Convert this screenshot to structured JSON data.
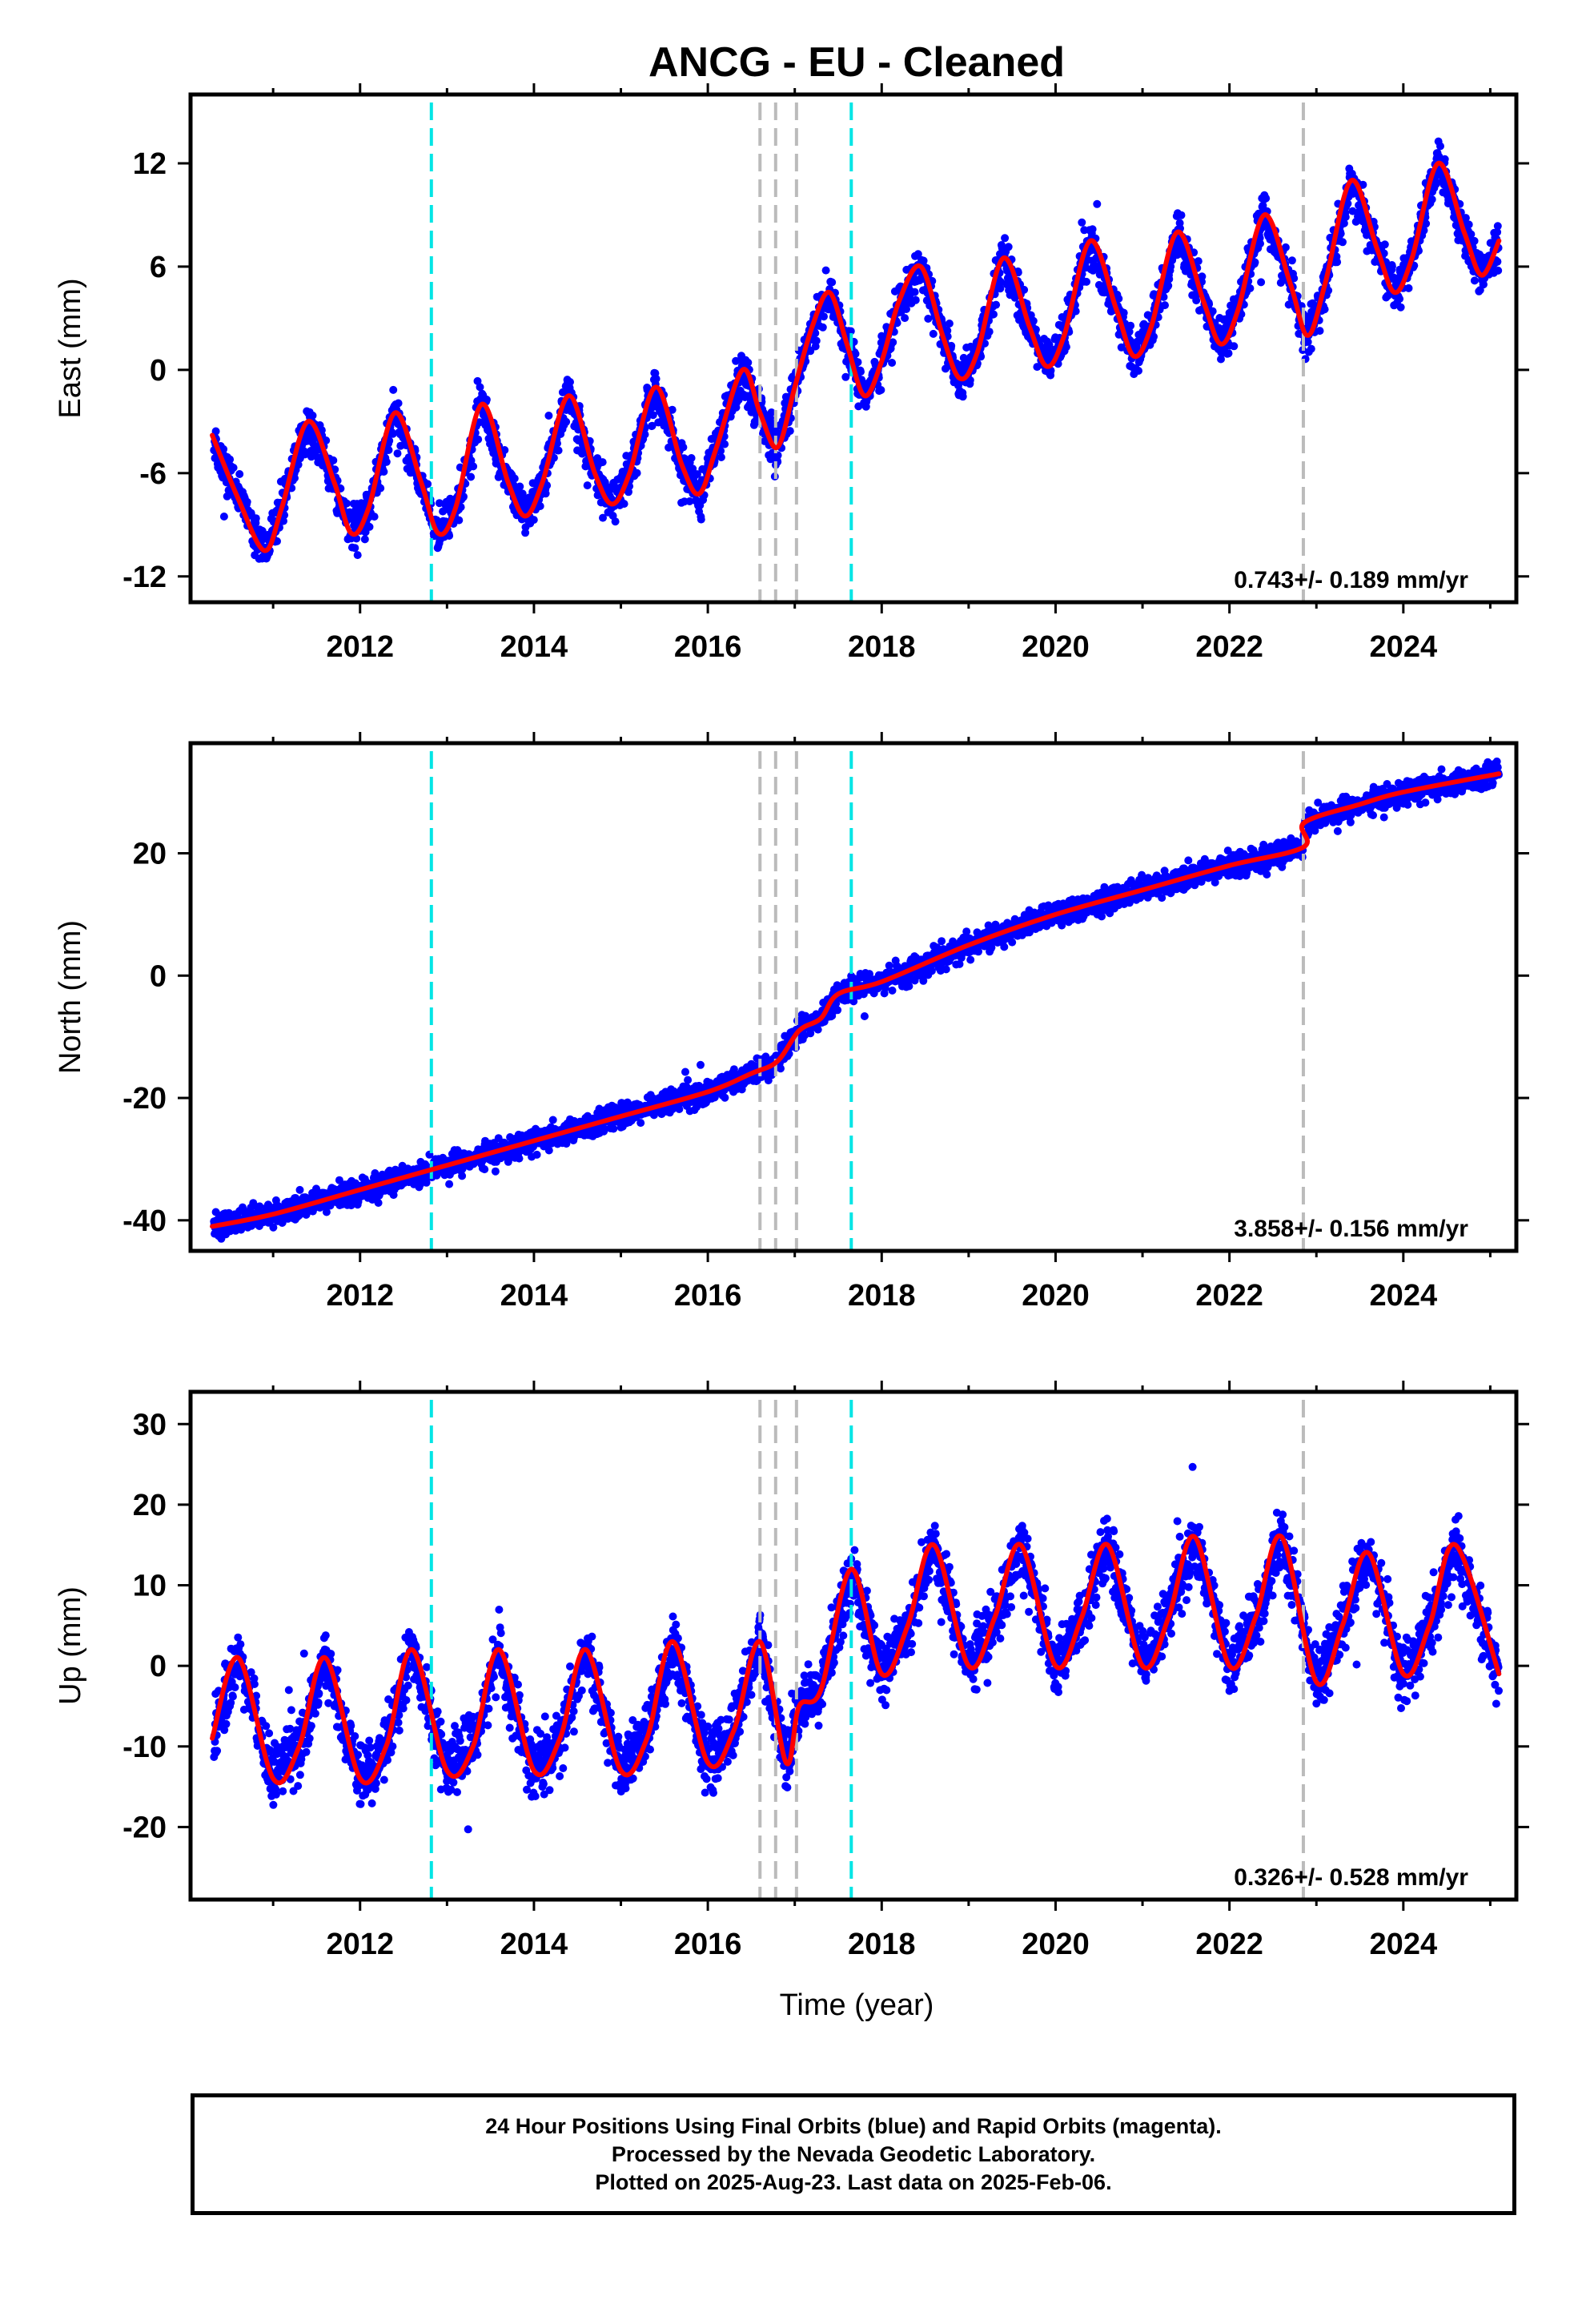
{
  "figure": {
    "title": "ANCG  - EU - Cleaned",
    "xlabel": "Time (year)",
    "footer": [
      "24 Hour Positions Using Final Orbits (blue) and Rapid Orbits (magenta).",
      "Processed by the Nevada Geodetic Laboratory.",
      "Plotted on 2025-Aug-23. Last data on 2025-Feb-06."
    ]
  },
  "colors": {
    "points": "#0000ff",
    "model": "#ff0000",
    "break_cyan": "#00e5e5",
    "break_gray": "#bbbbbb",
    "axis": "#000000"
  },
  "chart_data": [
    {
      "type": "scatter",
      "component": "east",
      "ylabel": "East (mm)",
      "xlim": [
        2010.05,
        2025.3
      ],
      "ylim": [
        -13.5,
        16
      ],
      "xticks": [
        "2012",
        "2014",
        "2016",
        "2018",
        "2020",
        "2022",
        "2024"
      ],
      "yticks": [
        "-12",
        "-6",
        "0",
        "6",
        "12"
      ],
      "ytick_values": [
        -12,
        -6,
        0,
        6,
        12
      ],
      "velocity_label": "0.743+/- 0.189 mm/yr",
      "model": {
        "x": [
          2010.3,
          2010.6,
          2010.9,
          2011.1,
          2011.4,
          2011.7,
          2011.9,
          2012.1,
          2012.4,
          2012.7,
          2012.9,
          2013.1,
          2013.4,
          2013.7,
          2013.9,
          2014.1,
          2014.4,
          2014.7,
          2014.9,
          2015.1,
          2015.4,
          2015.7,
          2015.9,
          2016.1,
          2016.4,
          2016.6,
          2016.8,
          2017.0,
          2017.2,
          2017.4,
          2017.6,
          2017.8,
          2018.0,
          2018.2,
          2018.45,
          2018.7,
          2018.9,
          2019.1,
          2019.4,
          2019.7,
          2019.9,
          2020.1,
          2020.4,
          2020.7,
          2020.9,
          2021.1,
          2021.4,
          2021.7,
          2021.9,
          2022.1,
          2022.4,
          2022.7,
          2022.9,
          2023.1,
          2023.4,
          2023.7,
          2023.9,
          2024.1,
          2024.4,
          2024.7,
          2024.9,
          2025.1
        ],
        "y": [
          -3.8,
          -7.5,
          -10.5,
          -8.0,
          -3.0,
          -6.5,
          -9.5,
          -8.0,
          -2.5,
          -6.5,
          -9.5,
          -8.0,
          -2.0,
          -6.5,
          -8.5,
          -6.5,
          -1.5,
          -6.0,
          -7.8,
          -6.0,
          -1.0,
          -5.5,
          -7.2,
          -4.5,
          0.0,
          -2.5,
          -4.5,
          -1.0,
          2.5,
          4.5,
          1.5,
          -1.5,
          0.5,
          4.0,
          6.0,
          2.0,
          -0.5,
          1.0,
          6.5,
          2.5,
          0.2,
          2.0,
          7.5,
          3.5,
          0.8,
          2.5,
          8.0,
          4.0,
          1.5,
          3.5,
          9.0,
          5.0,
          2.0,
          5.0,
          11.0,
          7.0,
          4.5,
          6.5,
          12.0,
          8.0,
          5.5,
          7.5
        ]
      },
      "scatter_density": 0.6,
      "breaks": {
        "cyan": [
          2012.82,
          2017.65
        ],
        "gray": [
          2016.6,
          2016.78,
          2017.02,
          2022.85
        ]
      }
    },
    {
      "type": "scatter",
      "component": "north",
      "ylabel": "North (mm)",
      "xlim": [
        2010.05,
        2025.3
      ],
      "ylim": [
        -45,
        38
      ],
      "xticks": [
        "2012",
        "2014",
        "2016",
        "2018",
        "2020",
        "2022",
        "2024"
      ],
      "yticks": [
        "-40",
        "-20",
        "0",
        "20"
      ],
      "ytick_values": [
        -40,
        -20,
        0,
        20
      ],
      "velocity_label": "3.858+/- 0.156 mm/yr",
      "model": {
        "x": [
          2010.3,
          2011.0,
          2012.0,
          2013.0,
          2014.0,
          2015.0,
          2016.0,
          2016.5,
          2016.8,
          2017.05,
          2017.3,
          2017.5,
          2018.0,
          2019.0,
          2020.0,
          2021.0,
          2022.0,
          2022.85,
          2022.86,
          2023.5,
          2024.0,
          2025.1
        ],
        "y": [
          -41,
          -39,
          -35,
          -31,
          -27,
          -23,
          -19,
          -16,
          -14,
          -9,
          -7,
          -3,
          -1,
          5,
          10,
          14,
          18,
          21,
          25,
          28,
          30,
          33
        ]
      },
      "scatter_density": 0.9,
      "breaks": {
        "cyan": [
          2012.82,
          2017.65
        ],
        "gray": [
          2016.6,
          2016.78,
          2017.02,
          2022.85
        ]
      }
    },
    {
      "type": "scatter",
      "component": "up",
      "ylabel": "Up (mm)",
      "xlim": [
        2010.05,
        2025.3
      ],
      "ylim": [
        -29,
        34
      ],
      "xticks": [
        "2012",
        "2014",
        "2016",
        "2018",
        "2020",
        "2022",
        "2024"
      ],
      "yticks": [
        "-20",
        "-10",
        "0",
        "10",
        "20",
        "30"
      ],
      "ytick_values": [
        -20,
        -10,
        0,
        10,
        20,
        30
      ],
      "velocity_label": "0.326+/- 0.528 mm/yr",
      "model": {
        "x": [
          2010.3,
          2010.6,
          2011.0,
          2011.3,
          2011.6,
          2012.0,
          2012.3,
          2012.6,
          2013.0,
          2013.3,
          2013.6,
          2014.0,
          2014.3,
          2014.6,
          2015.0,
          2015.3,
          2015.6,
          2016.0,
          2016.3,
          2016.6,
          2016.9,
          2017.05,
          2017.3,
          2017.65,
          2018.0,
          2018.3,
          2018.6,
          2019.0,
          2019.3,
          2019.6,
          2020.0,
          2020.3,
          2020.6,
          2021.0,
          2021.3,
          2021.6,
          2022.0,
          2022.3,
          2022.6,
          2023.0,
          2023.3,
          2023.6,
          2024.0,
          2024.3,
          2024.6,
          2025.1
        ],
        "y": [
          -9,
          1,
          -14,
          -10,
          1,
          -14,
          -10,
          2,
          -13,
          -10,
          2,
          -13,
          -9,
          2,
          -13,
          -9,
          3,
          -12,
          -8,
          3,
          -12,
          -5,
          -3,
          12,
          -1,
          5,
          15,
          0,
          6,
          15,
          0,
          6,
          15,
          0,
          6,
          16,
          0,
          6,
          16,
          -2,
          5,
          14,
          -1,
          5,
          15,
          -1
        ]
      },
      "scatter_density": 1.8,
      "breaks": {
        "cyan": [
          2012.82,
          2017.65
        ],
        "gray": [
          2016.6,
          2016.78,
          2017.02,
          2022.85
        ]
      }
    }
  ]
}
